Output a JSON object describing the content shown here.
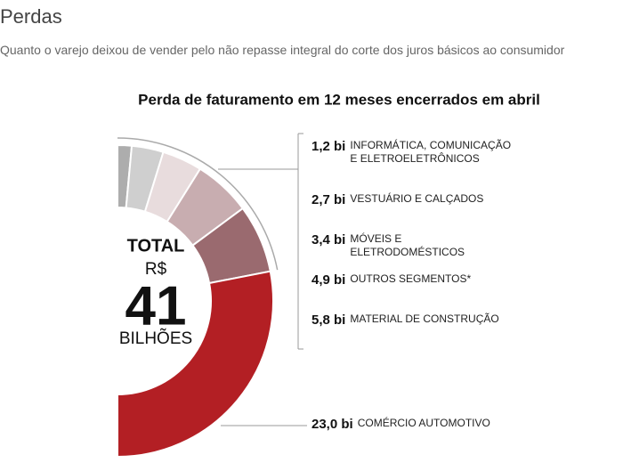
{
  "header": {
    "title": "Perdas",
    "subtitle": "Quanto o varejo deixou de vender pelo não repasse integral do corte dos juros básicos ao consumidor"
  },
  "chart_data": {
    "type": "half-donut",
    "title": "Perda de faturamento em 12 meses encerrados em abril",
    "categories": [
      "INFORMÁTICA, COMUNICAÇÃO E ELETROELETRÔNICOS",
      "VESTUÁRIO E CALÇADOS",
      "MÓVEIS E ELETRODOMÉSTICOS",
      "OUTROS SEGMENTOS*",
      "MATERIAL DE CONSTRUÇÃO",
      "COMÉRCIO AUTOMOTIVO"
    ],
    "values": [
      1.2,
      2.7,
      3.4,
      4.9,
      5.8,
      23.0
    ],
    "value_labels": [
      "1,2 bi",
      "2,7 bi",
      "3,4 bi",
      "4,9 bi",
      "5,8 bi",
      "23,0 bi"
    ],
    "colors": [
      "#adadad",
      "#cfcfcf",
      "#e8dcdd",
      "#c8adb0",
      "#9a6a6f",
      "#b31f24"
    ],
    "total_label": "TOTAL",
    "currency": "R$",
    "total": 41,
    "unit": "BILHÕES"
  }
}
